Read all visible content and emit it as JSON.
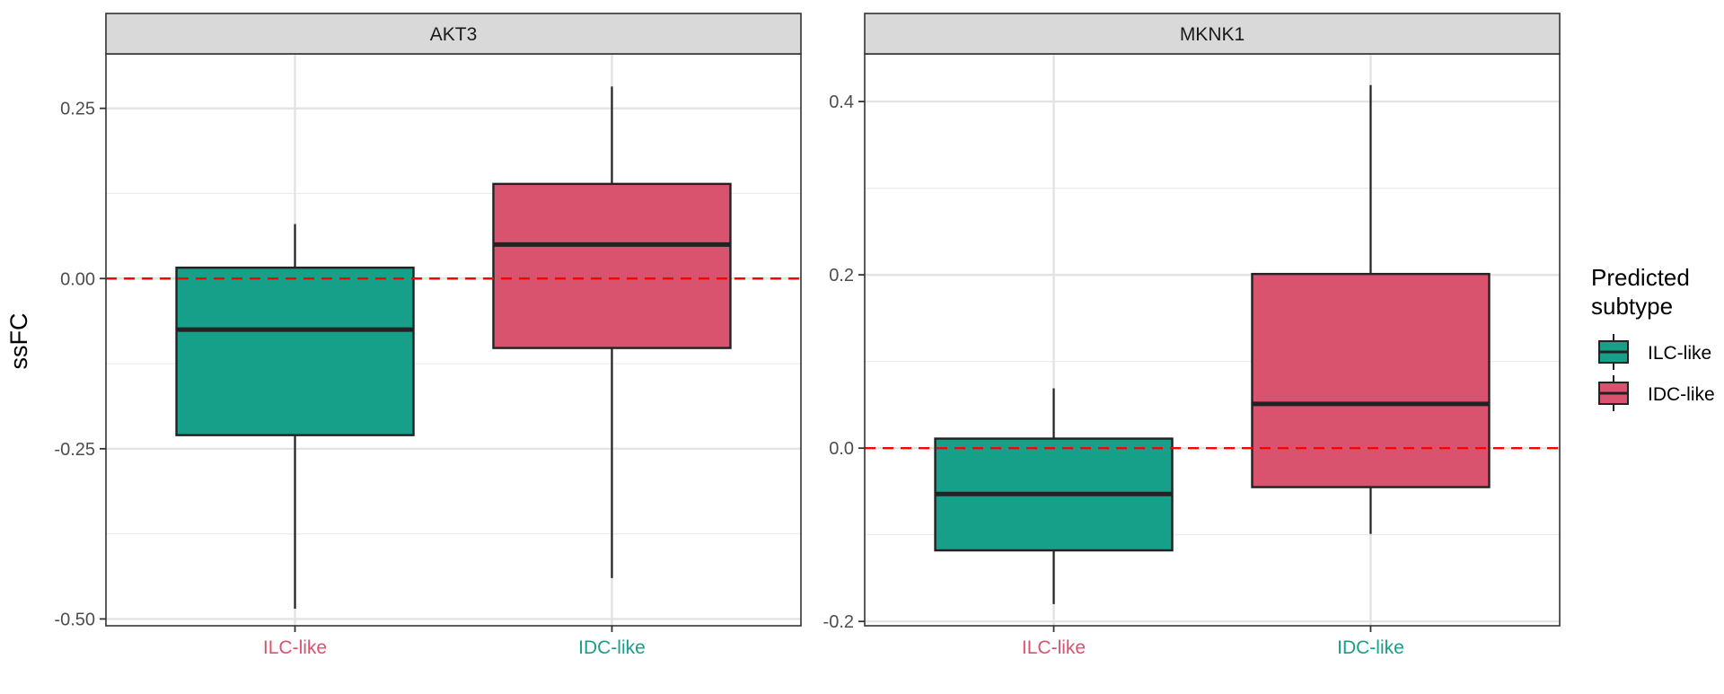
{
  "chart_data": {
    "type": "boxplot",
    "ylabel": "ssFC",
    "categories": [
      "ILC-like",
      "IDC-like"
    ],
    "category_label_colors": [
      "#d9536f",
      "#17a089"
    ],
    "grid": true,
    "reference_line": {
      "y": 0,
      "color": "#ff0000",
      "style": "dashed"
    },
    "legend": {
      "title": "Predicted\nsubtype",
      "placement": "right",
      "entries": [
        {
          "label": "ILC-like",
          "color": "#17a089"
        },
        {
          "label": "IDC-like",
          "color": "#d9536f"
        }
      ]
    },
    "panels": [
      {
        "title": "AKT3",
        "ylim": [
          -0.51,
          0.33
        ],
        "yticks": [
          {
            "value": 0.25,
            "label": "0.25"
          },
          {
            "value": 0,
            "label": "0.00"
          },
          {
            "value": -0.25,
            "label": "-0.25"
          },
          {
            "value": -0.5,
            "label": "-0.50"
          }
        ],
        "yminor": [
          0.125,
          -0.125,
          -0.375
        ],
        "boxes": [
          {
            "category": "ILC-like",
            "color": "#17a089",
            "lower_whisker": -0.485,
            "q1": -0.23,
            "median": -0.075,
            "q3": 0.016,
            "upper_whisker": 0.08
          },
          {
            "category": "IDC-like",
            "color": "#d9536f",
            "lower_whisker": -0.44,
            "q1": -0.102,
            "median": 0.05,
            "q3": 0.139,
            "upper_whisker": 0.282
          }
        ]
      },
      {
        "title": "MKNK1",
        "ylim": [
          -0.205,
          0.455
        ],
        "yticks": [
          {
            "value": 0.4,
            "label": "0.4"
          },
          {
            "value": 0.2,
            "label": "0.2"
          },
          {
            "value": 0,
            "label": "0.0"
          },
          {
            "value": -0.2,
            "label": "-0.2"
          }
        ],
        "yminor": [
          0.3,
          0.1,
          -0.1
        ],
        "boxes": [
          {
            "category": "ILC-like",
            "color": "#17a089",
            "lower_whisker": -0.18,
            "q1": -0.118,
            "median": -0.053,
            "q3": 0.011,
            "upper_whisker": 0.069
          },
          {
            "category": "IDC-like",
            "color": "#d9536f",
            "lower_whisker": -0.099,
            "q1": -0.045,
            "median": 0.051,
            "q3": 0.201,
            "upper_whisker": 0.419
          }
        ]
      }
    ]
  }
}
